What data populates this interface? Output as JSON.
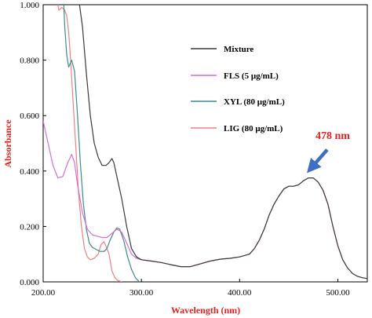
{
  "chart_data": {
    "type": "line",
    "title": "",
    "xlabel": "Wavelength (nm)",
    "ylabel": "Absorbance",
    "xlim": [
      200,
      530
    ],
    "ylim": [
      0,
      1.0
    ],
    "x_ticks": [
      200,
      300,
      400,
      500
    ],
    "x_tick_labels": [
      "200.00",
      "300.00",
      "400.00",
      "500.00"
    ],
    "y_ticks": [
      0,
      0.2,
      0.4,
      0.6,
      0.8,
      1.0
    ],
    "y_tick_labels": [
      "0.000",
      "0.200",
      "0.400",
      "0.600",
      "0.800",
      "1.000"
    ],
    "grid": false,
    "legend_position": "top-right",
    "series": [
      {
        "name": "Mixture",
        "color": "#3a3a3a",
        "points": [
          [
            237,
            1.0
          ],
          [
            240,
            0.92
          ],
          [
            244,
            0.75
          ],
          [
            248,
            0.6
          ],
          [
            252,
            0.5
          ],
          [
            256,
            0.45
          ],
          [
            260,
            0.42
          ],
          [
            264,
            0.42
          ],
          [
            267,
            0.43
          ],
          [
            270,
            0.445
          ],
          [
            272,
            0.43
          ],
          [
            275,
            0.38
          ],
          [
            280,
            0.3
          ],
          [
            285,
            0.2
          ],
          [
            290,
            0.12
          ],
          [
            295,
            0.09
          ],
          [
            300,
            0.08
          ],
          [
            310,
            0.075
          ],
          [
            320,
            0.07
          ],
          [
            330,
            0.062
          ],
          [
            340,
            0.055
          ],
          [
            350,
            0.055
          ],
          [
            360,
            0.065
          ],
          [
            370,
            0.075
          ],
          [
            380,
            0.082
          ],
          [
            390,
            0.085
          ],
          [
            400,
            0.09
          ],
          [
            410,
            0.1
          ],
          [
            415,
            0.12
          ],
          [
            420,
            0.15
          ],
          [
            425,
            0.19
          ],
          [
            430,
            0.24
          ],
          [
            435,
            0.28
          ],
          [
            440,
            0.31
          ],
          [
            445,
            0.335
          ],
          [
            450,
            0.345
          ],
          [
            455,
            0.345
          ],
          [
            460,
            0.35
          ],
          [
            465,
            0.365
          ],
          [
            470,
            0.375
          ],
          [
            475,
            0.375
          ],
          [
            480,
            0.36
          ],
          [
            485,
            0.33
          ],
          [
            490,
            0.28
          ],
          [
            495,
            0.2
          ],
          [
            500,
            0.13
          ],
          [
            505,
            0.08
          ],
          [
            510,
            0.05
          ],
          [
            515,
            0.03
          ],
          [
            520,
            0.02
          ],
          [
            525,
            0.015
          ],
          [
            530,
            0.012
          ]
        ]
      },
      {
        "name": "FLS (5 μg/mL)",
        "color": "#d66fd8",
        "points": [
          [
            200,
            0.58
          ],
          [
            205,
            0.5
          ],
          [
            210,
            0.42
          ],
          [
            215,
            0.375
          ],
          [
            220,
            0.38
          ],
          [
            225,
            0.43
          ],
          [
            229,
            0.46
          ],
          [
            232,
            0.43
          ],
          [
            235,
            0.35
          ],
          [
            240,
            0.25
          ],
          [
            245,
            0.19
          ],
          [
            250,
            0.17
          ],
          [
            255,
            0.165
          ],
          [
            260,
            0.16
          ],
          [
            265,
            0.16
          ],
          [
            270,
            0.175
          ],
          [
            275,
            0.19
          ],
          [
            280,
            0.18
          ],
          [
            285,
            0.14
          ],
          [
            290,
            0.1
          ],
          [
            295,
            0.085
          ],
          [
            300,
            0.08
          ],
          [
            310,
            0.075
          ],
          [
            320,
            0.07
          ],
          [
            330,
            0.062
          ],
          [
            340,
            0.055
          ],
          [
            350,
            0.055
          ],
          [
            360,
            0.065
          ],
          [
            370,
            0.075
          ],
          [
            380,
            0.082
          ],
          [
            390,
            0.085
          ],
          [
            400,
            0.09
          ],
          [
            410,
            0.1
          ],
          [
            415,
            0.12
          ],
          [
            420,
            0.15
          ],
          [
            425,
            0.19
          ],
          [
            430,
            0.24
          ],
          [
            435,
            0.28
          ],
          [
            440,
            0.31
          ],
          [
            445,
            0.335
          ],
          [
            450,
            0.345
          ],
          [
            455,
            0.345
          ],
          [
            460,
            0.35
          ],
          [
            465,
            0.365
          ],
          [
            470,
            0.375
          ],
          [
            475,
            0.375
          ],
          [
            480,
            0.36
          ],
          [
            485,
            0.33
          ],
          [
            490,
            0.28
          ],
          [
            495,
            0.2
          ],
          [
            500,
            0.13
          ],
          [
            505,
            0.08
          ],
          [
            510,
            0.05
          ],
          [
            515,
            0.03
          ],
          [
            520,
            0.02
          ],
          [
            525,
            0.015
          ],
          [
            530,
            0.012
          ]
        ]
      },
      {
        "name": "XYL (80 μg/mL)",
        "color": "#3f8a8e",
        "points": [
          [
            221,
            1.0
          ],
          [
            222,
            0.92
          ],
          [
            224,
            0.82
          ],
          [
            226,
            0.775
          ],
          [
            229,
            0.8
          ],
          [
            232,
            0.76
          ],
          [
            235,
            0.6
          ],
          [
            238,
            0.42
          ],
          [
            241,
            0.28
          ],
          [
            244,
            0.19
          ],
          [
            247,
            0.14
          ],
          [
            250,
            0.125
          ],
          [
            255,
            0.115
          ],
          [
            258,
            0.11
          ],
          [
            262,
            0.11
          ],
          [
            265,
            0.12
          ],
          [
            268,
            0.15
          ],
          [
            272,
            0.18
          ],
          [
            275,
            0.195
          ],
          [
            278,
            0.19
          ],
          [
            282,
            0.15
          ],
          [
            286,
            0.09
          ],
          [
            290,
            0.045
          ],
          [
            294,
            0.015
          ],
          [
            298,
            0.0
          ]
        ]
      },
      {
        "name": "LIG (80 μg/mL)",
        "color": "#f08080",
        "points": [
          [
            215,
            1.0
          ],
          [
            216,
            0.98
          ],
          [
            219,
            0.99
          ],
          [
            222,
            0.98
          ],
          [
            224,
            0.96
          ],
          [
            226,
            0.9
          ],
          [
            228,
            0.8
          ],
          [
            230,
            0.68
          ],
          [
            233,
            0.5
          ],
          [
            236,
            0.32
          ],
          [
            239,
            0.2
          ],
          [
            242,
            0.12
          ],
          [
            245,
            0.09
          ],
          [
            248,
            0.08
          ],
          [
            252,
            0.085
          ],
          [
            256,
            0.1
          ],
          [
            259,
            0.135
          ],
          [
            262,
            0.145
          ],
          [
            265,
            0.12
          ],
          [
            267,
            0.1
          ],
          [
            270,
            0.04
          ],
          [
            273,
            0.015
          ],
          [
            276,
            0.005
          ],
          [
            280,
            0.0
          ]
        ]
      }
    ],
    "annotation": {
      "text": "478 nm",
      "x": 478,
      "y": 0.375,
      "color": "#e8211e",
      "arrow_color": "#3f6fc4"
    }
  }
}
